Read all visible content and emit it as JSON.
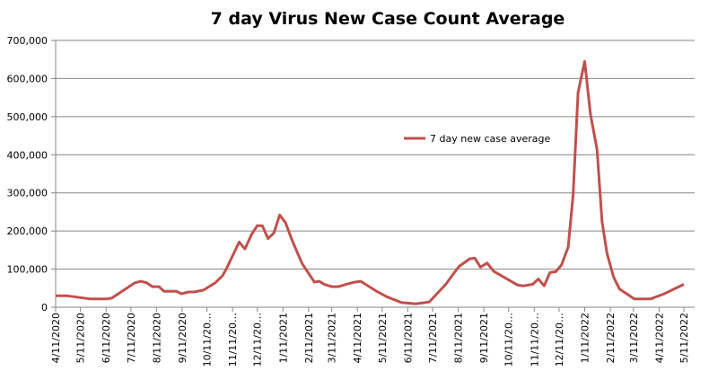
{
  "chart_data": {
    "type": "line",
    "title": "7 day Virus New Case Count Average",
    "xlabel": "",
    "ylabel": "",
    "xlim": [
      "2020-04-11",
      "2022-05-11"
    ],
    "ylim": [
      0,
      700000
    ],
    "yticks": [
      0,
      100000,
      200000,
      300000,
      400000,
      500000,
      600000,
      700000
    ],
    "ytick_labels": [
      "0",
      "100,000",
      "200,000",
      "300,000",
      "400,000",
      "500,000",
      "600,000",
      "700,000"
    ],
    "xtick_dates": [
      "2020-04-11",
      "2020-05-11",
      "2020-06-11",
      "2020-07-11",
      "2020-08-11",
      "2020-09-11",
      "2020-10-11",
      "2020-11-11",
      "2020-12-11",
      "2021-01-11",
      "2021-02-11",
      "2021-03-11",
      "2021-04-11",
      "2021-05-11",
      "2021-06-11",
      "2021-07-11",
      "2021-08-11",
      "2021-09-11",
      "2021-10-11",
      "2021-11-11",
      "2021-12-11",
      "2022-01-11",
      "2022-02-11",
      "2022-03-11",
      "2022-04-11",
      "2022-05-11"
    ],
    "xtick_labels": [
      "4/11/2020",
      "5/11/2020",
      "6/11/2020",
      "7/11/2020",
      "8/11/2020",
      "9/11/2020",
      "10/11/20…",
      "11/11/20…",
      "12/11/20…",
      "1/11/2021",
      "2/11/2021",
      "3/11/2021",
      "4/11/2021",
      "5/11/2021",
      "6/11/2021",
      "7/11/2021",
      "8/11/2021",
      "9/11/2021",
      "10/11/20…",
      "11/11/20…",
      "12/11/20…",
      "1/11/2022",
      "2/11/2022",
      "3/11/2022",
      "4/11/2022",
      "5/11/2022"
    ],
    "grid": true,
    "legend_position": "center",
    "series": [
      {
        "name": "7 day new case average",
        "color": "#C0504D",
        "x": [
          "2020-04-11",
          "2020-04-25",
          "2020-05-22",
          "2020-06-13",
          "2020-06-18",
          "2020-07-16",
          "2020-07-23",
          "2020-07-30",
          "2020-08-06",
          "2020-08-14",
          "2020-08-20",
          "2020-09-04",
          "2020-09-10",
          "2020-09-19",
          "2020-09-26",
          "2020-10-07",
          "2020-10-21",
          "2020-10-30",
          "2020-11-04",
          "2020-11-19",
          "2020-11-26",
          "2020-12-04",
          "2020-12-11",
          "2020-12-17",
          "2020-12-24",
          "2020-12-31",
          "2021-01-07",
          "2021-01-14",
          "2021-01-22",
          "2021-02-03",
          "2021-02-18",
          "2021-02-24",
          "2021-03-02",
          "2021-03-11",
          "2021-03-19",
          "2021-03-30",
          "2021-04-06",
          "2021-04-15",
          "2021-05-05",
          "2021-05-16",
          "2021-06-03",
          "2021-06-21",
          "2021-07-07",
          "2021-07-27",
          "2021-08-05",
          "2021-08-12",
          "2021-08-25",
          "2021-08-31",
          "2021-09-07",
          "2021-09-15",
          "2021-09-23",
          "2021-10-22",
          "2021-10-29",
          "2021-11-09",
          "2021-11-16",
          "2021-11-23",
          "2021-11-30",
          "2021-12-07",
          "2021-12-14",
          "2021-12-22",
          "2021-12-28",
          "2022-01-03",
          "2022-01-11",
          "2022-01-18",
          "2022-01-26",
          "2022-02-01",
          "2022-02-07",
          "2022-02-15",
          "2022-02-22",
          "2022-03-12",
          "2022-04-01",
          "2022-04-17",
          "2022-05-11"
        ],
        "values": [
          30000,
          30000,
          22000,
          22000,
          24000,
          64000,
          68000,
          64000,
          54000,
          54000,
          42000,
          42000,
          35000,
          40000,
          40000,
          45000,
          64000,
          83000,
          103000,
          171000,
          153000,
          191000,
          214000,
          214000,
          180000,
          195000,
          242000,
          222000,
          176000,
          115000,
          66000,
          68000,
          60000,
          54000,
          54000,
          61000,
          65000,
          68000,
          41000,
          28000,
          12500,
          9000,
          14000,
          60000,
          87000,
          107000,
          127000,
          129000,
          105000,
          116000,
          94000,
          58000,
          56000,
          60000,
          74000,
          56000,
          91000,
          93000,
          111000,
          158000,
          295000,
          563000,
          645000,
          507000,
          413000,
          225000,
          142000,
          79000,
          48000,
          22000,
          22000,
          35000,
          60000
        ]
      }
    ]
  }
}
